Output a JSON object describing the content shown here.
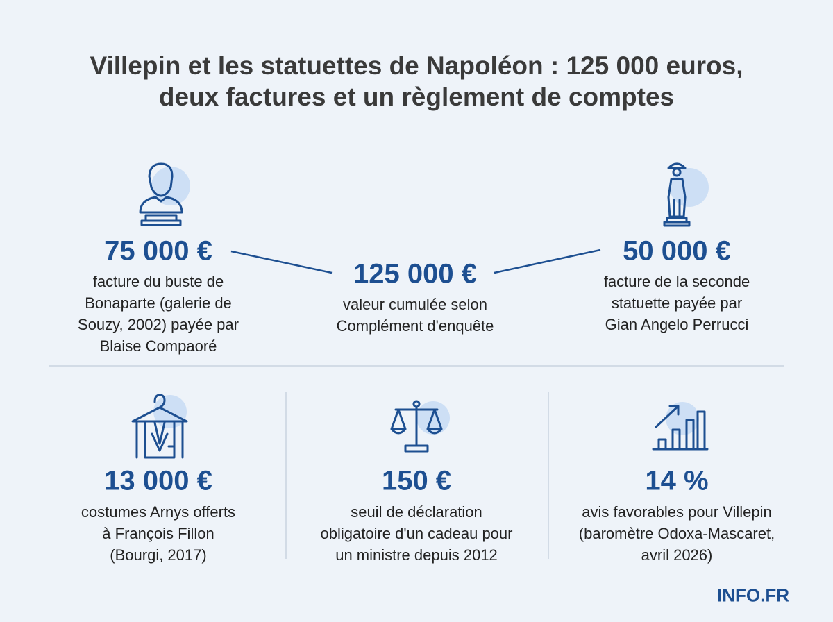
{
  "title": [
    "Villepin et les statuettes de Napoléon : 125 000 euros,",
    "deux factures et un règlement de comptes"
  ],
  "top_stats": [
    {
      "value": "75 000 €",
      "description": [
        "facture du buste de",
        "Bonaparte (galerie de",
        "Souzy, 2002) payée par",
        "Blaise Compaoré"
      ]
    },
    {
      "value": "125 000 €",
      "description": [
        "valeur cumulée selon",
        "Complément d'enquête"
      ]
    },
    {
      "value": "50 000 €",
      "description": [
        "facture de la seconde",
        "statuette payée par",
        "Gian Angelo Perrucci"
      ]
    }
  ],
  "bottom_stats": [
    {
      "value": "13 000 €",
      "description": [
        "costumes Arnys offerts",
        "à François Fillon",
        "(Bourgi, 2017)"
      ]
    },
    {
      "value": "150 €",
      "description": [
        "seuil de déclaration",
        "obligatoire d'un cadeau pour",
        "un ministre depuis 2012"
      ]
    },
    {
      "value": "14 %",
      "description": [
        "avis favorables pour Villepin",
        "(baromètre Odoxa-Mascaret,",
        "avril 2026)"
      ]
    }
  ],
  "brand": "INFO.FR"
}
